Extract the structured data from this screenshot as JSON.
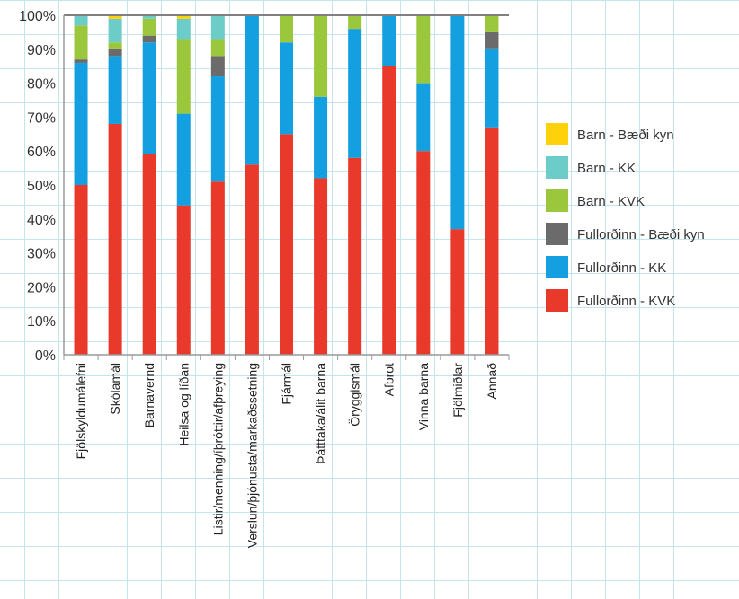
{
  "chart_data": {
    "type": "bar",
    "stacked": true,
    "categories": [
      "Fjölskyldumálefni",
      "Skólamál",
      "Barnavernd",
      "Heilsa og líðan",
      "Listir/menning/íþróttir/afþreying",
      "Verslun/þjónusta/markaðssetning",
      "Fjármál",
      "Þátttaka/álit barna",
      "Öryggismál",
      "Afbrot",
      "Vinna barna",
      "Fjölmiðlar",
      "Annað"
    ],
    "series": [
      {
        "name": "Fullorðinn - KVK",
        "color": "#e8392a",
        "values": [
          50,
          68,
          59,
          44,
          51,
          56,
          65,
          52,
          58,
          85,
          60,
          37,
          67
        ]
      },
      {
        "name": "Fullorðinn - KK",
        "color": "#139fe0",
        "values": [
          36,
          20,
          33,
          27,
          31,
          44,
          27,
          24,
          38,
          15,
          20,
          63,
          23
        ]
      },
      {
        "name": "Fullorðinn - Bæði kyn",
        "color": "#6b6b6b",
        "values": [
          1,
          2,
          2,
          0,
          6,
          0,
          0,
          0,
          0,
          0,
          0,
          0,
          5
        ]
      },
      {
        "name": "Barn - KVK",
        "color": "#9bc73c",
        "values": [
          10,
          2,
          5,
          22,
          5,
          0,
          8,
          24,
          4,
          0,
          20,
          0,
          5
        ]
      },
      {
        "name": "Barn - KK",
        "color": "#6ccdc8",
        "values": [
          3,
          7,
          1,
          6,
          7,
          0,
          0,
          0,
          0,
          0,
          0,
          0,
          0
        ]
      },
      {
        "name": "Barn - Bæði kyn",
        "color": "#fdd20a",
        "values": [
          0,
          1,
          0,
          1,
          0,
          0,
          0,
          0,
          0,
          0,
          0,
          0,
          0
        ]
      }
    ],
    "ylim": [
      0,
      100
    ],
    "yticks": [
      "0%",
      "10%",
      "20%",
      "30%",
      "40%",
      "50%",
      "60%",
      "70%",
      "80%",
      "90%",
      "100%"
    ],
    "legend": [
      {
        "name": "Barn - Bæði kyn",
        "color": "#fdd20a"
      },
      {
        "name": "Barn - KK",
        "color": "#6ccdc8"
      },
      {
        "name": "Barn - KVK",
        "color": "#9bc73c"
      },
      {
        "name": "Fullorðinn - Bæði kyn",
        "color": "#6b6b6b"
      },
      {
        "name": "Fullorðinn - KK",
        "color": "#139fe0"
      },
      {
        "name": "Fullorðinn - KVK",
        "color": "#e8392a"
      }
    ],
    "legend_position": "right",
    "grid": true
  }
}
